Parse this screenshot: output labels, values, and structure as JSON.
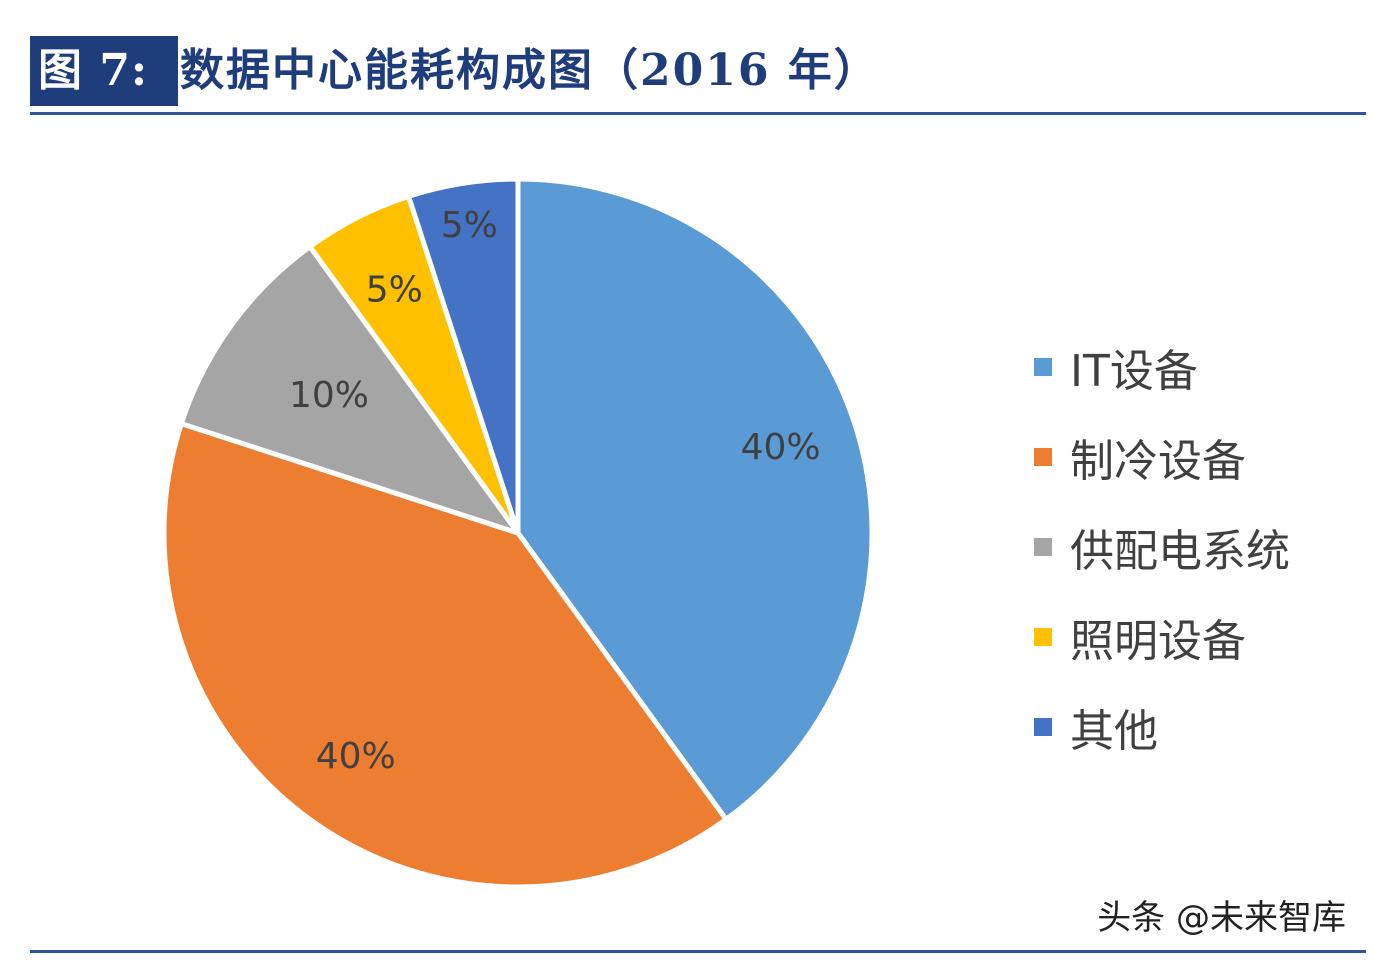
{
  "figure": {
    "label": "图 7:",
    "title": "数据中心能耗构成图（2016 年）"
  },
  "chart_data": {
    "type": "pie",
    "categories": [
      "IT设备",
      "制冷设备",
      "供配电系统",
      "照明设备",
      "其他"
    ],
    "values": [
      40,
      40,
      10,
      5,
      5
    ],
    "value_labels": [
      "40%",
      "40%",
      "10%",
      "5%",
      "5%"
    ],
    "colors": [
      "#5b9bd5",
      "#ed7d31",
      "#a5a5a5",
      "#ffc000",
      "#4472c4"
    ],
    "start": "12 o'clock",
    "direction": "clockwise",
    "legend_position": "right",
    "label_color": "#404040"
  },
  "watermark": "头条 @未来智库"
}
